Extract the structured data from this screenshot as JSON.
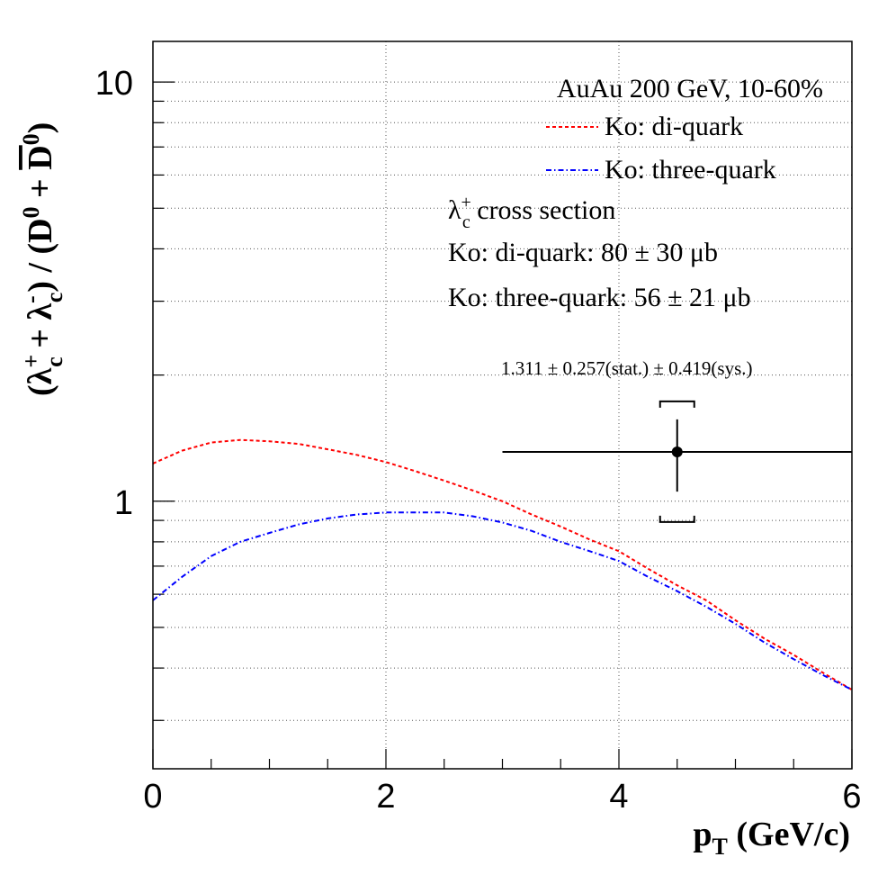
{
  "chart_data": {
    "type": "line",
    "x_axis": {
      "label_main": "p",
      "label_sub": "T",
      "label_rest": " (GeV/c)",
      "range": [
        0,
        6
      ],
      "ticks": [
        0,
        2,
        4,
        6
      ],
      "tick_labels": [
        "0",
        "2",
        "4",
        "6"
      ]
    },
    "y_axis": {
      "scale": "log",
      "range": [
        0.23,
        12.5
      ],
      "ticks": [
        1,
        10
      ],
      "tick_labels": [
        "1",
        "10"
      ],
      "label_parts": {
        "open": "(",
        "lambda": "λ",
        "sub_c": "c",
        "sup_plus": "+",
        "plus": " + ",
        "sup_minus": "-",
        "close_div": ") / (D",
        "sup_zero": "0",
        "plus2": " + ",
        "dbar": "D",
        "close": ")"
      }
    },
    "grid": true,
    "legend": {
      "header": "AuAu 200 GeV, 10-60%",
      "placement": "top-right",
      "entries": [
        {
          "name": "Ko: di-quark",
          "color": "#ff0000",
          "style": "dashed"
        },
        {
          "name": "Ko: three-quark",
          "color": "#0000ff",
          "style": "dash-dot"
        }
      ]
    },
    "annotations": {
      "cross_section_title_lambda": "λ",
      "cross_section_title_sub": "c",
      "cross_section_title_sup": "+",
      "cross_section_title_rest": " cross section",
      "diquark_xsec": "Ko: di-quark: 80 ± 30 μb",
      "threequark_xsec": "Ko: three-quark: 56 ± 21 μb",
      "measurement_label": "1.311 ± 0.257(stat.) ± 0.419(sys.)"
    },
    "series": [
      {
        "name": "Ko: di-quark",
        "color": "#ff0000",
        "x": [
          0,
          0.25,
          0.5,
          0.75,
          1.0,
          1.25,
          1.5,
          1.75,
          2.0,
          2.25,
          2.5,
          2.75,
          3.0,
          3.25,
          3.5,
          3.75,
          4.0,
          4.25,
          4.5,
          4.75,
          5.0,
          5.25,
          5.5,
          5.75,
          6.0
        ],
        "y": [
          1.23,
          1.32,
          1.38,
          1.4,
          1.39,
          1.37,
          1.33,
          1.29,
          1.24,
          1.18,
          1.12,
          1.06,
          1.0,
          0.93,
          0.87,
          0.81,
          0.76,
          0.69,
          0.63,
          0.58,
          0.52,
          0.47,
          0.43,
          0.39,
          0.355
        ]
      },
      {
        "name": "Ko: three-quark",
        "color": "#0000ff",
        "x": [
          0,
          0.25,
          0.5,
          0.75,
          1.0,
          1.25,
          1.5,
          1.75,
          2.0,
          2.25,
          2.5,
          2.75,
          3.0,
          3.25,
          3.5,
          3.75,
          4.0,
          4.25,
          4.5,
          4.75,
          5.0,
          5.25,
          5.5,
          5.75,
          6.0
        ],
        "y": [
          0.58,
          0.66,
          0.74,
          0.8,
          0.84,
          0.88,
          0.91,
          0.93,
          0.94,
          0.94,
          0.94,
          0.92,
          0.89,
          0.85,
          0.8,
          0.76,
          0.72,
          0.66,
          0.61,
          0.56,
          0.51,
          0.46,
          0.42,
          0.385,
          0.355
        ]
      }
    ],
    "measurement": {
      "x": 4.5,
      "y": 1.311,
      "x_range": [
        3.0,
        6.0
      ],
      "stat_err": 0.257,
      "sys_err": 0.419
    }
  }
}
